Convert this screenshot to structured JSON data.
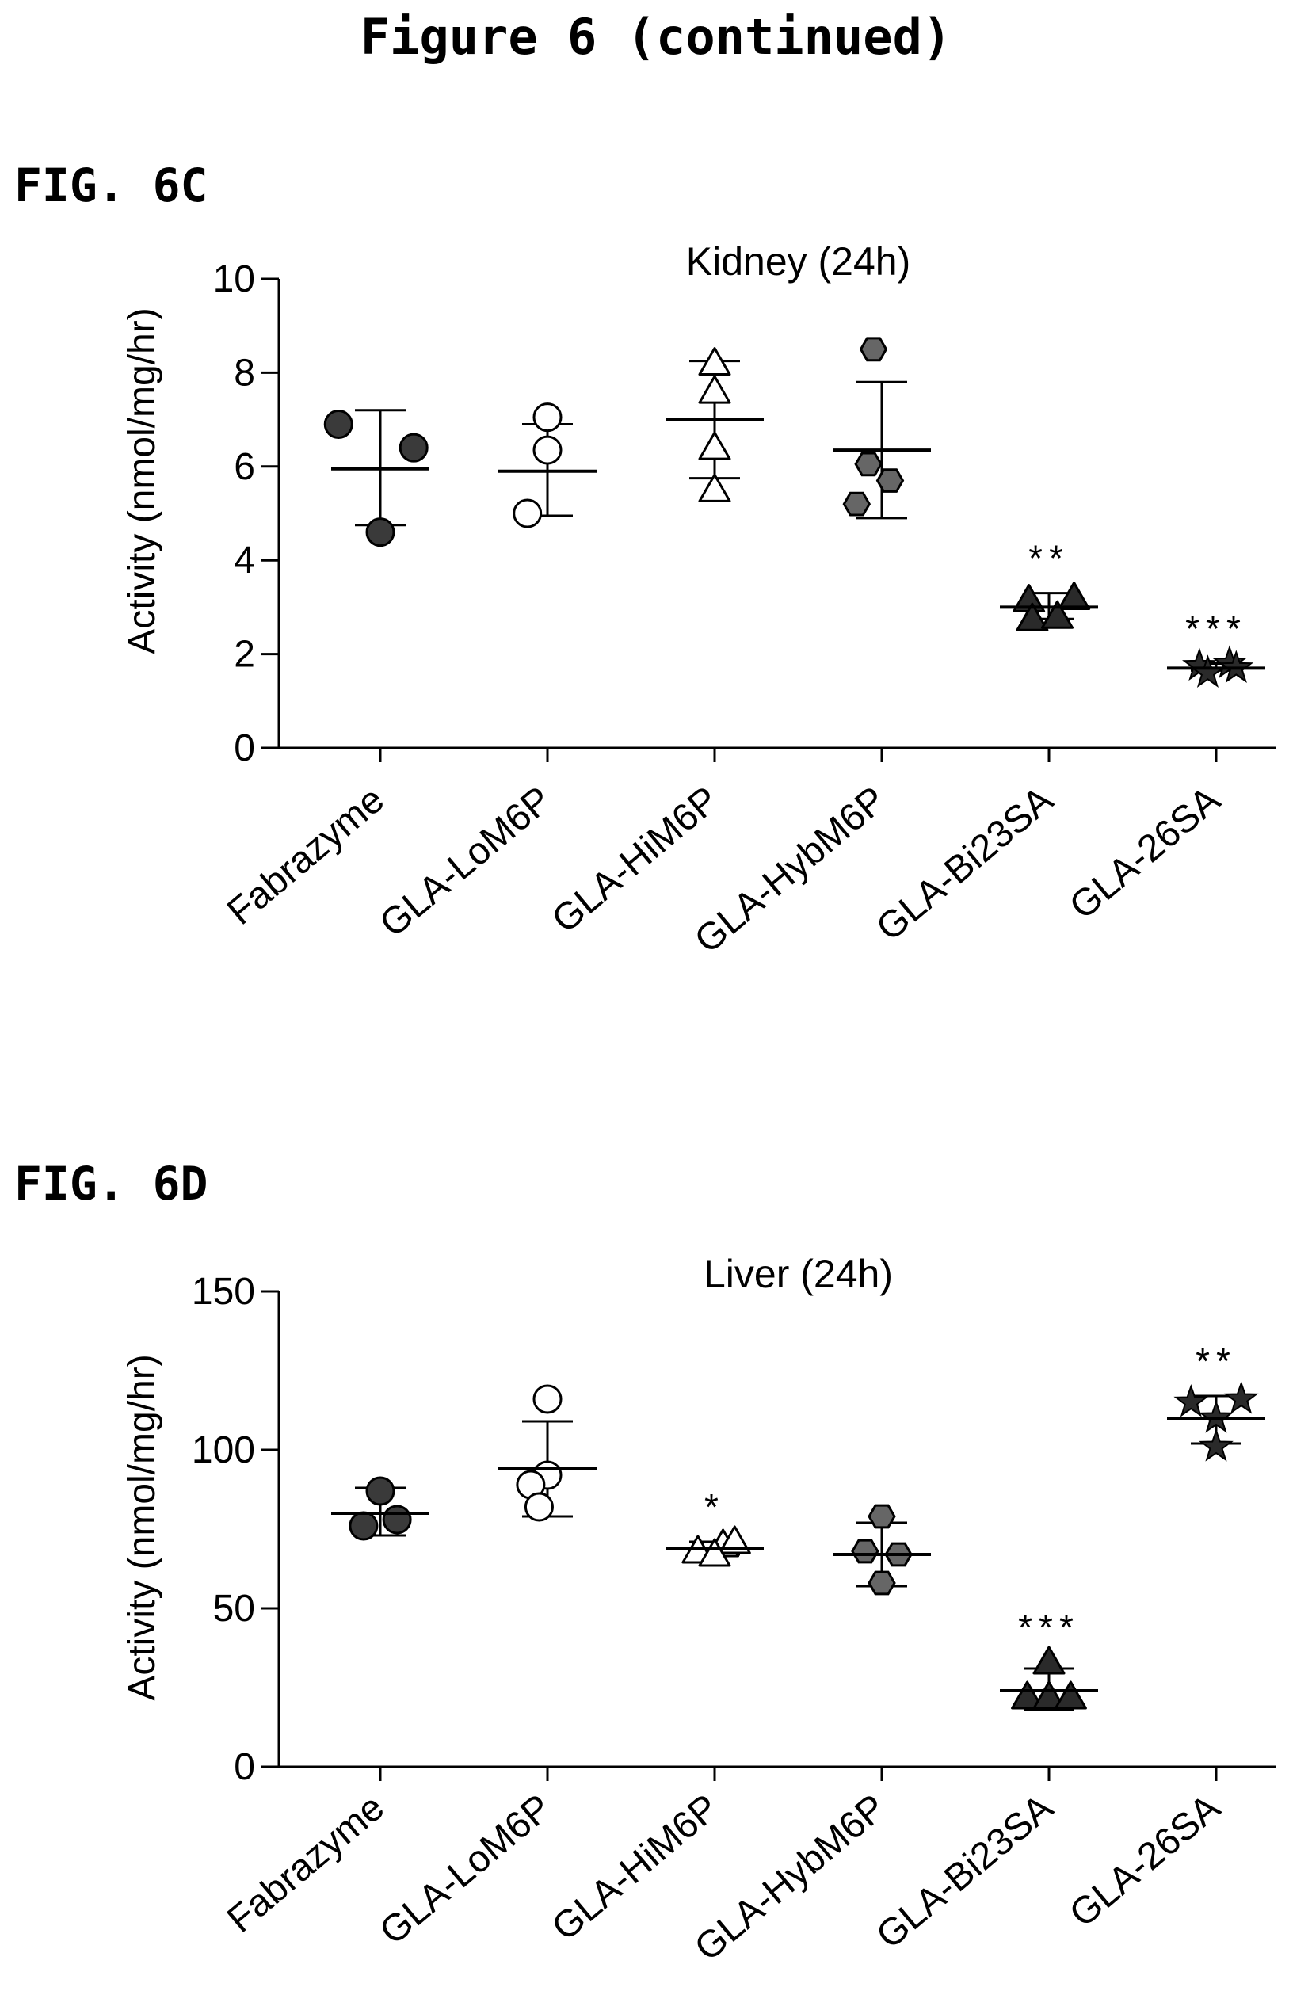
{
  "page": {
    "title": "Figure 6 (continued)"
  },
  "chart_data": [
    {
      "id": "6C",
      "figure_label": "FIG. 6C",
      "type": "scatter",
      "title": "Kidney (24h)",
      "xlabel": "",
      "ylabel": "Activity (nmol/mg/hr)",
      "ylim": [
        0,
        10
      ],
      "yticks": [
        0,
        2,
        4,
        6,
        8,
        10
      ],
      "grid": false,
      "categories": [
        "Fabrazyme",
        "GLA-LoM6P",
        "GLA-HiM6P",
        "GLA-HybM6P",
        "GLA-Bi23SA",
        "GLA-26SA"
      ],
      "groups": [
        {
          "category": "Fabrazyme",
          "marker": "circle",
          "fill": "#3a3a3a",
          "mean": 5.95,
          "sd_low": 4.75,
          "sd_high": 7.2,
          "significance": "",
          "points": [
            [
              -0.25,
              6.9
            ],
            [
              0.2,
              6.4
            ],
            [
              0.0,
              4.6
            ]
          ]
        },
        {
          "category": "GLA-LoM6P",
          "marker": "circle",
          "fill": "#ffffff",
          "mean": 5.9,
          "sd_low": 4.95,
          "sd_high": 6.9,
          "significance": "",
          "points": [
            [
              0.0,
              7.05
            ],
            [
              0.0,
              6.35
            ],
            [
              -0.12,
              5.0
            ]
          ]
        },
        {
          "category": "GLA-HiM6P",
          "marker": "triangle",
          "fill": "#ffffff",
          "mean": 7.0,
          "sd_low": 5.75,
          "sd_high": 8.25,
          "significance": "",
          "points": [
            [
              0.0,
              8.2
            ],
            [
              0.0,
              7.6
            ],
            [
              0.0,
              6.4
            ],
            [
              0.0,
              5.5
            ]
          ]
        },
        {
          "category": "GLA-HybM6P",
          "marker": "hexagon",
          "fill": "#666666",
          "mean": 6.35,
          "sd_low": 4.9,
          "sd_high": 7.8,
          "significance": "",
          "points": [
            [
              -0.05,
              8.5
            ],
            [
              -0.08,
              6.05
            ],
            [
              0.05,
              5.7
            ],
            [
              -0.15,
              5.2
            ]
          ]
        },
        {
          "category": "GLA-Bi23SA",
          "marker": "triangle",
          "fill": "#2a2a2a",
          "mean": 3.0,
          "sd_low": 2.75,
          "sd_high": 3.3,
          "significance": "**",
          "points": [
            [
              -0.12,
              3.15
            ],
            [
              0.15,
              3.2
            ],
            [
              -0.1,
              2.75
            ],
            [
              0.05,
              2.8
            ]
          ]
        },
        {
          "category": "GLA-26SA",
          "marker": "star",
          "fill": "#2a2a2a",
          "mean": 1.7,
          "sd_low": 1.65,
          "sd_high": 1.8,
          "significance": "***",
          "points": [
            [
              -0.1,
              1.75
            ],
            [
              0.08,
              1.8
            ],
            [
              -0.05,
              1.6
            ],
            [
              0.12,
              1.7
            ]
          ]
        }
      ]
    },
    {
      "id": "6D",
      "figure_label": "FIG. 6D",
      "type": "scatter",
      "title": "Liver (24h)",
      "xlabel": "",
      "ylabel": "Activity (nmol/mg/hr)",
      "ylim": [
        0,
        150
      ],
      "yticks": [
        0,
        50,
        100,
        150
      ],
      "grid": false,
      "categories": [
        "Fabrazyme",
        "GLA-LoM6P",
        "GLA-HiM6P",
        "GLA-HybM6P",
        "GLA-Bi23SA",
        "GLA-26SA"
      ],
      "groups": [
        {
          "category": "Fabrazyme",
          "marker": "circle",
          "fill": "#3a3a3a",
          "mean": 80,
          "sd_low": 73,
          "sd_high": 88,
          "significance": "",
          "points": [
            [
              0.0,
              87
            ],
            [
              -0.1,
              76
            ],
            [
              0.1,
              78
            ]
          ]
        },
        {
          "category": "GLA-LoM6P",
          "marker": "circle",
          "fill": "#ffffff",
          "mean": 94,
          "sd_low": 79,
          "sd_high": 109,
          "significance": "",
          "points": [
            [
              0.0,
              116
            ],
            [
              0.0,
              92
            ],
            [
              -0.1,
              89
            ],
            [
              -0.05,
              82
            ]
          ]
        },
        {
          "category": "GLA-HiM6P",
          "marker": "triangle",
          "fill": "#ffffff",
          "mean": 69,
          "sd_low": 67,
          "sd_high": 71,
          "significance": "*",
          "points": [
            [
              -0.1,
              68
            ],
            [
              0.05,
              70
            ],
            [
              0.12,
              71
            ],
            [
              0.0,
              67
            ]
          ]
        },
        {
          "category": "GLA-HybM6P",
          "marker": "hexagon",
          "fill": "#666666",
          "mean": 67,
          "sd_low": 57,
          "sd_high": 77,
          "significance": "",
          "points": [
            [
              0.0,
              79
            ],
            [
              -0.1,
              68
            ],
            [
              0.1,
              67
            ],
            [
              0.0,
              58
            ]
          ]
        },
        {
          "category": "GLA-Bi23SA",
          "marker": "triangle",
          "fill": "#2a2a2a",
          "mean": 24,
          "sd_low": 18,
          "sd_high": 31,
          "significance": "***",
          "points": [
            [
              0.0,
              33
            ],
            [
              -0.13,
              22
            ],
            [
              0.0,
              22
            ],
            [
              0.13,
              22
            ]
          ]
        },
        {
          "category": "GLA-26SA",
          "marker": "star",
          "fill": "#2a2a2a",
          "mean": 110,
          "sd_low": 102,
          "sd_high": 117,
          "significance": "**",
          "points": [
            [
              -0.15,
              115
            ],
            [
              0.15,
              116
            ],
            [
              0.0,
              110
            ],
            [
              0.0,
              101
            ]
          ]
        }
      ]
    }
  ]
}
